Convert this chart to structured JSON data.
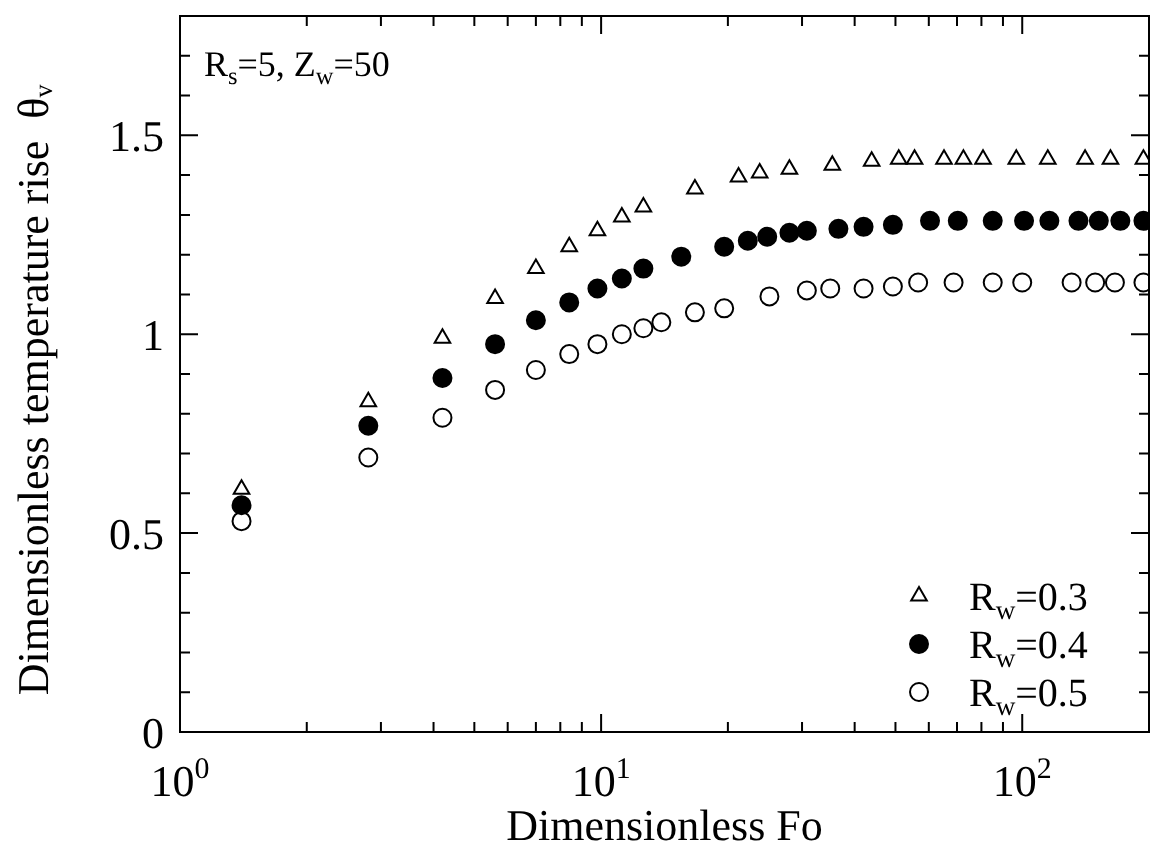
{
  "chart_data": {
    "type": "scatter",
    "xlabel": "Dimensionless Fo",
    "ylabel": "Dimensionless temperature rise  θᵥ",
    "annotations": [
      "R$_{s}$=5, Z$_{w}$=50"
    ],
    "log": "x",
    "xlim": [
      1,
      200
    ],
    "xticks": [
      {
        "value": 1,
        "label": "10$^{0}$"
      },
      {
        "value": 2,
        "label": null
      },
      {
        "value": 3,
        "label": null
      },
      {
        "value": 4,
        "label": null
      },
      {
        "value": 5,
        "label": null
      },
      {
        "value": 6,
        "label": null
      },
      {
        "value": 7,
        "label": null
      },
      {
        "value": 8,
        "label": null
      },
      {
        "value": 9,
        "label": null
      },
      {
        "value": 10,
        "label": "10$^{1}$"
      },
      {
        "value": 20,
        "label": null
      },
      {
        "value": 30,
        "label": null
      },
      {
        "value": 40,
        "label": null
      },
      {
        "value": 50,
        "label": null
      },
      {
        "value": 60,
        "label": null
      },
      {
        "value": 70,
        "label": null
      },
      {
        "value": 80,
        "label": null
      },
      {
        "value": 90,
        "label": null
      },
      {
        "value": 100,
        "label": "10$^{2}$"
      },
      {
        "value": 200,
        "label": null
      }
    ],
    "ylim": [
      0,
      1.8
    ],
    "yticks": [
      0,
      {
        "value": 0.1,
        "label": null
      },
      {
        "value": 0.2,
        "label": null
      },
      {
        "value": 0.3,
        "label": null
      },
      {
        "value": 0.4,
        "label": null
      },
      0.5,
      {
        "value": 0.6,
        "label": null
      },
      {
        "value": 0.7,
        "label": null
      },
      {
        "value": 0.8,
        "label": null
      },
      {
        "value": 0.9,
        "label": null
      },
      1,
      {
        "value": 1.1,
        "label": null
      },
      {
        "value": 1.2,
        "label": null
      },
      {
        "value": 1.3,
        "label": null
      },
      {
        "value": 1.4,
        "label": null
      },
      1.5,
      {
        "value": 1.6,
        "label": null
      },
      {
        "value": 1.7,
        "label": null
      }
    ],
    "grid": false,
    "legend": "bottom right",
    "series": [
      {
        "name": "R$_{w}$=0.3",
        "color": "#ffffff",
        "marker": "triangle",
        "x": [
          1.4,
          2.8,
          4.2,
          5.6,
          7.0,
          8.4,
          9.8,
          11.2,
          12.6,
          16.7,
          21.2,
          23.8,
          28,
          35.4,
          43.9,
          50.9,
          55.5,
          65.2,
          72.5,
          80.7,
          96.8,
          115,
          141,
          162,
          194
        ],
        "values": [
          0.61,
          0.83,
          0.99,
          1.09,
          1.165,
          1.22,
          1.26,
          1.295,
          1.32,
          1.365,
          1.395,
          1.405,
          1.415,
          1.425,
          1.435,
          1.44,
          1.44,
          1.44,
          1.44,
          1.44,
          1.44,
          1.44,
          1.44,
          1.44,
          1.44
        ]
      },
      {
        "name": "R$_{w}$=0.4",
        "color": "#000000",
        "marker": "circle",
        "x": [
          1.4,
          2.8,
          4.2,
          5.6,
          7.0,
          8.4,
          9.8,
          11.2,
          12.6,
          15.5,
          19.6,
          22.3,
          24.8,
          28,
          30.8,
          36.6,
          42,
          49.3,
          60.4,
          70.3,
          85.1,
          101,
          116,
          136,
          152,
          171,
          194
        ],
        "values": [
          0.57,
          0.77,
          0.89,
          0.975,
          1.035,
          1.08,
          1.115,
          1.14,
          1.165,
          1.195,
          1.22,
          1.235,
          1.245,
          1.255,
          1.26,
          1.265,
          1.27,
          1.275,
          1.285,
          1.285,
          1.285,
          1.285,
          1.285,
          1.285,
          1.285,
          1.285,
          1.285
        ]
      },
      {
        "name": "R$_{w}$=0.5",
        "color": "#ffffff",
        "marker": "circle",
        "x": [
          1.4,
          2.8,
          4.2,
          5.6,
          7.0,
          8.4,
          9.8,
          11.2,
          12.6,
          13.9,
          16.7,
          19.6,
          25.1,
          30.8,
          35,
          42,
          49.3,
          56.6,
          68.7,
          85.1,
          100,
          131,
          149,
          166,
          194
        ],
        "values": [
          0.53,
          0.69,
          0.79,
          0.86,
          0.91,
          0.95,
          0.975,
          1.0,
          1.015,
          1.03,
          1.055,
          1.065,
          1.095,
          1.11,
          1.115,
          1.115,
          1.12,
          1.13,
          1.13,
          1.13,
          1.13,
          1.13,
          1.13,
          1.13,
          1.13
        ]
      }
    ]
  }
}
